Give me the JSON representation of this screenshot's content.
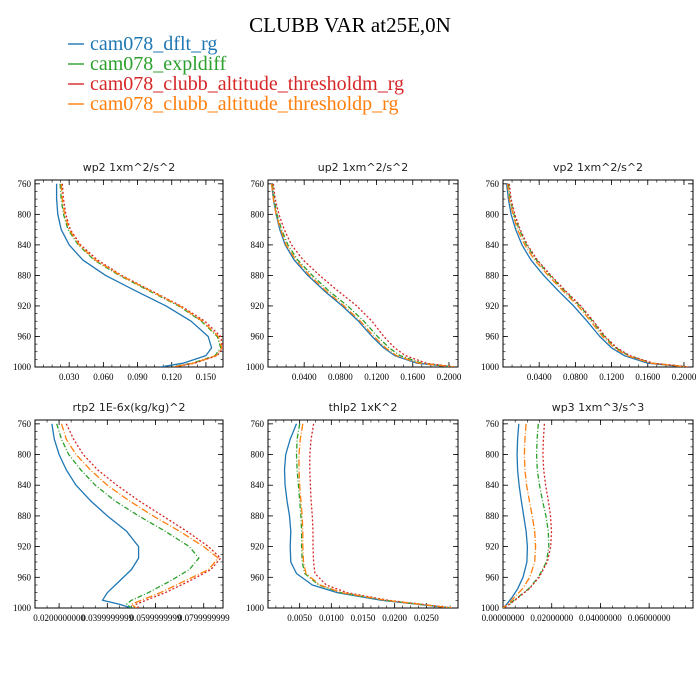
{
  "title": "CLUBB VAR at25E,0N",
  "legend": [
    {
      "name": "cam078_dflt_rg",
      "color": "#1f77b4",
      "dash": ""
    },
    {
      "name": "cam078_expldiff",
      "color": "#2ca02c",
      "dash": "5,2,1,2"
    },
    {
      "name": "cam078_clubb_altitude_thresholdm_rg",
      "color": "#d62728",
      "dash": "2,2"
    },
    {
      "name": "cam078_clubb_altitude_thresholdp_rg",
      "color": "#ff7f0e",
      "dash": "7,2,1,2"
    }
  ],
  "chart_data": [
    {
      "type": "line",
      "title": "wp2  1xm^2/s^2",
      "xlim": [
        0,
        0.165
      ],
      "ylim": [
        1000,
        755
      ],
      "yticks": [
        760,
        800,
        840,
        880,
        920,
        960,
        1000
      ],
      "xticks": [
        0.03,
        0.06,
        0.09,
        0.12,
        0.15
      ],
      "xticklabels": [
        "0.030",
        "0.060",
        "0.090",
        "0.120",
        "0.150"
      ],
      "series": [
        {
          "y": [
            760,
            780,
            800,
            820,
            840,
            860,
            880,
            900,
            920,
            940,
            960,
            975,
            985,
            995,
            1000
          ],
          "x": [
            0.019,
            0.019,
            0.02,
            0.023,
            0.03,
            0.042,
            0.062,
            0.088,
            0.115,
            0.137,
            0.152,
            0.155,
            0.15,
            0.13,
            0.11
          ]
        },
        {
          "y": [
            760,
            780,
            800,
            820,
            840,
            860,
            880,
            900,
            920,
            940,
            960,
            975,
            985,
            995,
            1000
          ],
          "x": [
            0.022,
            0.023,
            0.025,
            0.029,
            0.038,
            0.052,
            0.074,
            0.1,
            0.126,
            0.146,
            0.16,
            0.163,
            0.158,
            0.138,
            0.12
          ]
        },
        {
          "y": [
            760,
            780,
            800,
            820,
            840,
            860,
            880,
            900,
            920,
            940,
            960,
            975,
            985,
            995,
            1000
          ],
          "x": [
            0.024,
            0.025,
            0.027,
            0.031,
            0.04,
            0.055,
            0.076,
            0.102,
            0.128,
            0.149,
            0.163,
            0.165,
            0.16,
            0.14,
            0.122
          ]
        },
        {
          "y": [
            760,
            780,
            800,
            820,
            840,
            860,
            880,
            900,
            920,
            940,
            960,
            975,
            985,
            995,
            1000
          ],
          "x": [
            0.023,
            0.024,
            0.026,
            0.03,
            0.039,
            0.053,
            0.075,
            0.101,
            0.127,
            0.147,
            0.161,
            0.164,
            0.159,
            0.139,
            0.121
          ]
        }
      ]
    },
    {
      "type": "line",
      "title": "up2  1xm^2/s^2",
      "xlim": [
        0,
        0.21
      ],
      "ylim": [
        1000,
        755
      ],
      "yticks": [
        760,
        800,
        840,
        880,
        920,
        960,
        1000
      ],
      "xticks": [
        0.04,
        0.08,
        0.12,
        0.16,
        0.2
      ],
      "xticklabels": [
        "0.0400",
        "0.0800",
        "0.1200",
        "0.1600",
        "0.2000"
      ],
      "series": [
        {
          "y": [
            760,
            780,
            800,
            820,
            840,
            860,
            880,
            900,
            920,
            940,
            960,
            975,
            985,
            995,
            1000
          ],
          "x": [
            0.004,
            0.006,
            0.009,
            0.013,
            0.019,
            0.029,
            0.044,
            0.062,
            0.082,
            0.1,
            0.115,
            0.128,
            0.14,
            0.165,
            0.205
          ]
        },
        {
          "y": [
            760,
            780,
            800,
            820,
            840,
            860,
            880,
            900,
            920,
            940,
            960,
            975,
            985,
            995,
            1000
          ],
          "x": [
            0.005,
            0.007,
            0.01,
            0.015,
            0.022,
            0.033,
            0.049,
            0.067,
            0.088,
            0.106,
            0.121,
            0.134,
            0.146,
            0.17,
            0.206
          ]
        },
        {
          "y": [
            760,
            780,
            800,
            820,
            840,
            860,
            880,
            900,
            920,
            940,
            960,
            975,
            985,
            995,
            1000
          ],
          "x": [
            0.006,
            0.008,
            0.012,
            0.018,
            0.026,
            0.039,
            0.057,
            0.077,
            0.098,
            0.115,
            0.128,
            0.14,
            0.152,
            0.175,
            0.207
          ]
        },
        {
          "y": [
            760,
            780,
            800,
            820,
            840,
            860,
            880,
            900,
            920,
            940,
            960,
            975,
            985,
            995,
            1000
          ],
          "x": [
            0.004,
            0.006,
            0.009,
            0.014,
            0.02,
            0.031,
            0.046,
            0.064,
            0.084,
            0.102,
            0.117,
            0.13,
            0.142,
            0.167,
            0.205
          ]
        }
      ]
    },
    {
      "type": "line",
      "title": "vp2  1xm^2/s^2",
      "xlim": [
        0,
        0.21
      ],
      "ylim": [
        1000,
        755
      ],
      "yticks": [
        760,
        800,
        840,
        880,
        920,
        960,
        1000
      ],
      "xticks": [
        0.04,
        0.08,
        0.12,
        0.16,
        0.2
      ],
      "xticklabels": [
        "0.0400",
        "0.0800",
        "0.1200",
        "0.1600",
        "0.2000"
      ],
      "series": [
        {
          "y": [
            760,
            780,
            800,
            820,
            840,
            860,
            880,
            900,
            920,
            940,
            960,
            975,
            985,
            995,
            1000
          ],
          "x": [
            0.004,
            0.006,
            0.009,
            0.014,
            0.021,
            0.031,
            0.045,
            0.061,
            0.078,
            0.093,
            0.107,
            0.12,
            0.134,
            0.16,
            0.203
          ]
        },
        {
          "y": [
            760,
            780,
            800,
            820,
            840,
            860,
            880,
            900,
            920,
            940,
            960,
            975,
            985,
            995,
            1000
          ],
          "x": [
            0.006,
            0.008,
            0.012,
            0.018,
            0.026,
            0.037,
            0.052,
            0.068,
            0.085,
            0.099,
            0.112,
            0.125,
            0.139,
            0.165,
            0.205
          ]
        },
        {
          "y": [
            760,
            780,
            800,
            820,
            840,
            860,
            880,
            900,
            920,
            940,
            960,
            975,
            985,
            995,
            1000
          ],
          "x": [
            0.007,
            0.009,
            0.013,
            0.019,
            0.027,
            0.038,
            0.053,
            0.069,
            0.086,
            0.1,
            0.113,
            0.126,
            0.14,
            0.166,
            0.206
          ]
        },
        {
          "y": [
            760,
            780,
            800,
            820,
            840,
            860,
            880,
            900,
            920,
            940,
            960,
            975,
            985,
            995,
            1000
          ],
          "x": [
            0.005,
            0.007,
            0.011,
            0.016,
            0.024,
            0.035,
            0.05,
            0.066,
            0.083,
            0.097,
            0.11,
            0.123,
            0.137,
            0.163,
            0.204
          ]
        }
      ]
    },
    {
      "type": "line",
      "title": "rtp2  1E-6x(kg/kg)^2",
      "xlim": [
        0.01,
        0.088
      ],
      "ylim": [
        1000,
        755
      ],
      "yticks": [
        760,
        800,
        840,
        880,
        920,
        960,
        1000
      ],
      "xticks": [
        0.02,
        0.04,
        0.06,
        0.08
      ],
      "xticklabels": [
        "0.0200000000",
        "0.0399999999",
        "0.0599999999",
        "0.0799999999"
      ],
      "series": [
        {
          "y": [
            760,
            780,
            800,
            820,
            840,
            860,
            880,
            900,
            920,
            935,
            950,
            965,
            980,
            990,
            995,
            1000
          ],
          "x": [
            0.017,
            0.018,
            0.02,
            0.023,
            0.027,
            0.033,
            0.04,
            0.048,
            0.053,
            0.053,
            0.05,
            0.045,
            0.04,
            0.038,
            0.045,
            0.05
          ]
        },
        {
          "y": [
            760,
            780,
            800,
            820,
            840,
            860,
            880,
            900,
            920,
            935,
            950,
            965,
            980,
            990,
            995,
            1000
          ],
          "x": [
            0.019,
            0.021,
            0.024,
            0.029,
            0.035,
            0.043,
            0.053,
            0.064,
            0.074,
            0.078,
            0.074,
            0.066,
            0.057,
            0.05,
            0.048,
            0.05
          ]
        },
        {
          "y": [
            760,
            780,
            800,
            820,
            840,
            860,
            880,
            900,
            920,
            935,
            950,
            965,
            980,
            990,
            995,
            1000
          ],
          "x": [
            0.023,
            0.026,
            0.03,
            0.036,
            0.044,
            0.053,
            0.063,
            0.073,
            0.082,
            0.087,
            0.083,
            0.074,
            0.064,
            0.056,
            0.052,
            0.053
          ]
        },
        {
          "y": [
            760,
            780,
            800,
            820,
            840,
            860,
            880,
            900,
            920,
            935,
            950,
            965,
            980,
            990,
            995,
            1000
          ],
          "x": [
            0.021,
            0.023,
            0.027,
            0.033,
            0.04,
            0.049,
            0.059,
            0.07,
            0.08,
            0.086,
            0.082,
            0.072,
            0.062,
            0.054,
            0.05,
            0.052
          ]
        }
      ]
    },
    {
      "type": "line",
      "title": "thlp2  1xK^2",
      "xlim": [
        0,
        0.03
      ],
      "ylim": [
        1000,
        755
      ],
      "yticks": [
        760,
        800,
        840,
        880,
        920,
        960,
        1000
      ],
      "xticks": [
        0.005,
        0.01,
        0.015,
        0.02,
        0.025
      ],
      "xticklabels": [
        "0.0050",
        "0.0100",
        "0.0150",
        "0.0200",
        "0.0250"
      ],
      "series": [
        {
          "y": [
            760,
            780,
            800,
            820,
            840,
            860,
            880,
            900,
            920,
            940,
            955,
            970,
            980,
            990,
            1000
          ],
          "x": [
            0.0045,
            0.0035,
            0.0028,
            0.0026,
            0.0027,
            0.003,
            0.0034,
            0.0036,
            0.0035,
            0.0036,
            0.0045,
            0.007,
            0.011,
            0.018,
            0.029
          ]
        },
        {
          "y": [
            760,
            780,
            800,
            820,
            840,
            860,
            880,
            900,
            920,
            940,
            955,
            970,
            980,
            990,
            1000
          ],
          "x": [
            0.005,
            0.0046,
            0.0045,
            0.0046,
            0.0048,
            0.005,
            0.0052,
            0.0053,
            0.0053,
            0.0054,
            0.0058,
            0.008,
            0.0115,
            0.0185,
            0.029
          ]
        },
        {
          "y": [
            760,
            780,
            800,
            820,
            840,
            860,
            880,
            900,
            920,
            940,
            955,
            970,
            980,
            990,
            1000
          ],
          "x": [
            0.0072,
            0.0068,
            0.0066,
            0.0066,
            0.0067,
            0.0068,
            0.007,
            0.0071,
            0.0071,
            0.0072,
            0.0074,
            0.0092,
            0.0125,
            0.019,
            0.0292
          ]
        },
        {
          "y": [
            760,
            780,
            800,
            820,
            840,
            860,
            880,
            900,
            920,
            940,
            955,
            970,
            980,
            990,
            1000
          ],
          "x": [
            0.0055,
            0.0051,
            0.0049,
            0.0049,
            0.005,
            0.0052,
            0.0054,
            0.0055,
            0.0055,
            0.0056,
            0.006,
            0.0082,
            0.0117,
            0.0186,
            0.029
          ]
        }
      ]
    },
    {
      "type": "line",
      "title": "wp3  1xm^3/s^3",
      "xlim": [
        0,
        0.078
      ],
      "ylim": [
        1000,
        755
      ],
      "yticks": [
        760,
        800,
        840,
        880,
        920,
        960,
        1000
      ],
      "xticks": [
        0,
        0.02,
        0.04,
        0.06
      ],
      "xticklabels": [
        "0.00000000",
        "0.02000000",
        "0.04000000",
        "0.06000000"
      ],
      "series": [
        {
          "y": [
            760,
            780,
            800,
            820,
            840,
            860,
            880,
            900,
            920,
            940,
            960,
            975,
            985,
            995,
            1000
          ],
          "x": [
            0.0065,
            0.006,
            0.0058,
            0.006,
            0.0066,
            0.0075,
            0.0085,
            0.0095,
            0.01,
            0.0098,
            0.0082,
            0.006,
            0.004,
            0.0015,
            0.0
          ]
        },
        {
          "y": [
            760,
            780,
            800,
            820,
            840,
            860,
            880,
            900,
            920,
            940,
            960,
            975,
            985,
            995,
            1000
          ],
          "x": [
            0.0145,
            0.014,
            0.0138,
            0.0141,
            0.015,
            0.0162,
            0.0176,
            0.0186,
            0.0188,
            0.0178,
            0.0145,
            0.0105,
            0.0065,
            0.0025,
            0.0
          ]
        },
        {
          "y": [
            760,
            780,
            800,
            820,
            840,
            860,
            880,
            900,
            920,
            940,
            960,
            975,
            985,
            995,
            1000
          ],
          "x": [
            0.017,
            0.0166,
            0.0164,
            0.0167,
            0.0175,
            0.0186,
            0.0195,
            0.0199,
            0.0196,
            0.0182,
            0.0148,
            0.0108,
            0.0068,
            0.0028,
            0.0
          ]
        },
        {
          "y": [
            760,
            780,
            800,
            820,
            840,
            860,
            880,
            900,
            920,
            940,
            960,
            975,
            985,
            995,
            1000
          ],
          "x": [
            0.0095,
            0.009,
            0.0088,
            0.009,
            0.0097,
            0.0108,
            0.012,
            0.013,
            0.0134,
            0.013,
            0.011,
            0.008,
            0.005,
            0.002,
            0.0
          ]
        }
      ]
    }
  ]
}
